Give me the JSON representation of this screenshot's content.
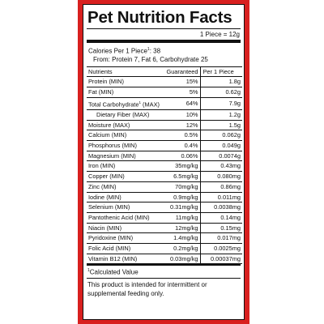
{
  "title": "Pet Nutrition Facts",
  "serving": "1 Piece = 12g",
  "calories": {
    "prefix": "Calories Per 1 Piece",
    "mark": "1",
    "suffix": ": 38"
  },
  "from_line": "From: Protein 7, Fat 6, Carbohydrate 25",
  "table": {
    "headers": [
      "Nutrients",
      "Guaranteed",
      "Per 1 Piece"
    ],
    "rows": [
      {
        "name": "Protein (MIN)",
        "guaranteed": "15%",
        "per_piece": "1.8g"
      },
      {
        "name": "Fat (MIN)",
        "guaranteed": "5%",
        "per_piece": "0.62g"
      },
      {
        "name": "Total Carbohydrate",
        "mark": "1",
        "name_suffix": " (MAX)",
        "guaranteed": "64%",
        "per_piece": "7.9g"
      },
      {
        "name": "Dietary Fiber (MAX)",
        "guaranteed": "10%",
        "per_piece": "1.2g",
        "indent": true
      },
      {
        "name": "Moisture (MAX)",
        "guaranteed": "12%",
        "per_piece": "1.5g"
      },
      {
        "name": "Calcium (MIN)",
        "guaranteed": "0.5%",
        "per_piece": "0.062g"
      },
      {
        "name": "Phosphorus (MIN)",
        "guaranteed": "0.4%",
        "per_piece": "0.049g"
      },
      {
        "name": "Magnesium (MIN)",
        "guaranteed": "0.06%",
        "per_piece": "0.0074g"
      },
      {
        "name": "Iron (MIN)",
        "guaranteed": "35mg/kg",
        "per_piece": "0.43mg"
      },
      {
        "name": "Copper (MIN)",
        "guaranteed": "6.5mg/kg",
        "per_piece": "0.080mg"
      },
      {
        "name": "Zinc (MIN)",
        "guaranteed": "70mg/kg",
        "per_piece": "0.86mg"
      },
      {
        "name": "Iodine (MIN)",
        "guaranteed": "0.9mg/kg",
        "per_piece": "0.011mg"
      },
      {
        "name": "Selenium (MIN)",
        "guaranteed": "0.31mg/kg",
        "per_piece": "0.0038mg"
      },
      {
        "name": "Pantothenic Acid (MIN)",
        "guaranteed": "11mg/kg",
        "per_piece": "0.14mg"
      },
      {
        "name": "Niacin (MIN)",
        "guaranteed": "12mg/kg",
        "per_piece": "0.15mg"
      },
      {
        "name": "Pyridoxine (MIN)",
        "guaranteed": "1.4mg/kg",
        "per_piece": "0.017mg"
      },
      {
        "name": "Folic Acid (MIN)",
        "guaranteed": "0.2mg/kg",
        "per_piece": "0.0025mg"
      },
      {
        "name": "Vitamin B12 (MIN)",
        "guaranteed": "0.03mg/kg",
        "per_piece": "0.00037mg"
      }
    ]
  },
  "footnote": {
    "mark": "1",
    "text": "Calculated Value"
  },
  "note": "This product is intended for intermittent or supplemental feeding only.",
  "colors": {
    "border": "#d8201f",
    "text": "#111111"
  }
}
